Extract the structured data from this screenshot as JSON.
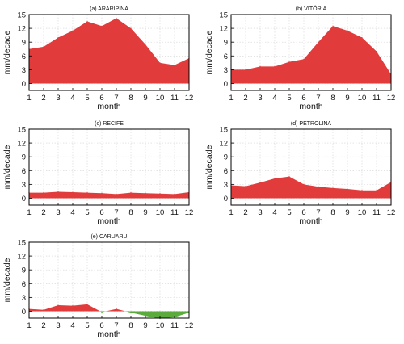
{
  "colors": {
    "positive": "#e23b3b",
    "negative": "#5aab3c"
  },
  "chart_data": [
    {
      "type": "area",
      "title": "(a) ARARIPINA",
      "xlabel": "month",
      "ylabel": "mm/decade",
      "x": [
        1,
        2,
        3,
        4,
        5,
        6,
        7,
        8,
        9,
        10,
        11,
        12
      ],
      "xticks": [
        1,
        2,
        3,
        4,
        5,
        6,
        7,
        8,
        9,
        10,
        11,
        12
      ],
      "yticks": [
        0,
        3,
        6,
        9,
        12,
        15
      ],
      "xlim": [
        1,
        12
      ],
      "ylim": [
        -1.5,
        15
      ],
      "grid": true,
      "series": [
        {
          "values": [
            7.5,
            8.0,
            10.0,
            11.5,
            13.5,
            12.5,
            14.2,
            12.0,
            8.5,
            4.5,
            4.0,
            5.5
          ]
        }
      ]
    },
    {
      "type": "area",
      "title": "(b) VITÓRIA",
      "xlabel": "month",
      "ylabel": "mm/decade",
      "x": [
        1,
        2,
        3,
        4,
        5,
        6,
        7,
        8,
        9,
        10,
        11,
        12
      ],
      "xticks": [
        1,
        2,
        3,
        4,
        5,
        6,
        7,
        8,
        9,
        10,
        11,
        12
      ],
      "yticks": [
        0,
        3,
        6,
        9,
        12,
        15
      ],
      "xlim": [
        1,
        12
      ],
      "ylim": [
        -1.5,
        15
      ],
      "grid": true,
      "series": [
        {
          "values": [
            3.0,
            3.0,
            3.7,
            3.7,
            4.7,
            5.3,
            9.0,
            12.5,
            11.5,
            10.0,
            7.0,
            2.0
          ]
        }
      ]
    },
    {
      "type": "area",
      "title": "(c) RECIFE",
      "xlabel": "month",
      "ylabel": "mm/decade",
      "x": [
        1,
        2,
        3,
        4,
        5,
        6,
        7,
        8,
        9,
        10,
        11,
        12
      ],
      "xticks": [
        1,
        2,
        3,
        4,
        5,
        6,
        7,
        8,
        9,
        10,
        11,
        12
      ],
      "yticks": [
        0,
        3,
        6,
        9,
        12,
        15
      ],
      "xlim": [
        1,
        12
      ],
      "ylim": [
        -1.5,
        15
      ],
      "grid": true,
      "series": [
        {
          "values": [
            1.2,
            1.2,
            1.4,
            1.3,
            1.2,
            1.1,
            0.9,
            1.2,
            1.1,
            1.0,
            0.9,
            1.3
          ]
        }
      ]
    },
    {
      "type": "area",
      "title": "(d) PETROLINA",
      "xlabel": "month",
      "ylabel": "mm/decade",
      "x": [
        1,
        2,
        3,
        4,
        5,
        6,
        7,
        8,
        9,
        10,
        11,
        12
      ],
      "xticks": [
        1,
        2,
        3,
        4,
        5,
        6,
        7,
        8,
        9,
        10,
        11,
        12
      ],
      "yticks": [
        0,
        3,
        6,
        9,
        12,
        15
      ],
      "xlim": [
        1,
        12
      ],
      "ylim": [
        -1.5,
        15
      ],
      "grid": true,
      "series": [
        {
          "values": [
            2.8,
            2.6,
            3.4,
            4.3,
            4.7,
            3.0,
            2.5,
            2.2,
            2.0,
            1.7,
            1.7,
            3.5
          ]
        }
      ]
    },
    {
      "type": "area",
      "title": "(e) CARUARU",
      "xlabel": "month",
      "ylabel": "mm/decade",
      "x": [
        1,
        2,
        3,
        4,
        5,
        6,
        7,
        8,
        9,
        10,
        11,
        12
      ],
      "xticks": [
        1,
        2,
        3,
        4,
        5,
        6,
        7,
        8,
        9,
        10,
        11,
        12
      ],
      "yticks": [
        0,
        3,
        6,
        9,
        12,
        15
      ],
      "xlim": [
        1,
        12
      ],
      "ylim": [
        -1.5,
        15
      ],
      "grid": true,
      "series": [
        {
          "values": [
            0.5,
            0.3,
            1.3,
            1.2,
            1.5,
            -0.2,
            0.5,
            -0.3,
            -1.0,
            -1.6,
            -1.3,
            -0.3
          ]
        }
      ]
    }
  ]
}
